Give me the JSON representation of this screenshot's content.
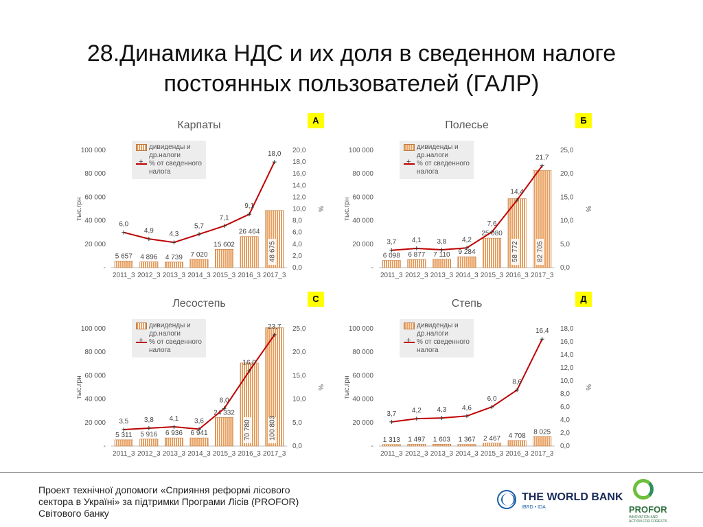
{
  "slide": {
    "title_line1": "28.Динамика НДС и их доля в сведенном налоге",
    "title_line2": "постоянных пользователей (ГАЛР)",
    "footer": "Проект технічної допомоги «Сприяння реформі лісового\nсектора в Україні» за підтримки Програми Лісів (PROFOR)\nСвітового банку",
    "worldbank_label": "THE WORLD BANK",
    "worldbank_sub": "IBRD • IDA",
    "profor_label": "PROFOR",
    "profor_sub": "INNOVATION AND ACTION FOR FORESTS"
  },
  "colors": {
    "bar": "#e8a060",
    "bar_stripe": "#ffffff",
    "line": "#c00000",
    "badge": "#ffff00"
  },
  "chart_data": [
    {
      "type": "bar",
      "badge": "A",
      "title": "Карпаты",
      "categories": [
        "2011_3",
        "2012_3",
        "2013_3",
        "2014_3",
        "2015_3",
        "2016_3",
        "2017_3"
      ],
      "ylabel": "тыс.грн",
      "y2label": "%",
      "ylim": [
        0,
        100000
      ],
      "yticks": [
        "-",
        "20 000",
        "40 000",
        "60 000",
        "80 000",
        "100 000"
      ],
      "y2lim": [
        0,
        20
      ],
      "y2ticks": [
        "0,0",
        "2,0",
        "4,0",
        "6,0",
        "8,0",
        "10,0",
        "12,0",
        "14,0",
        "16,0",
        "18,0",
        "20,0"
      ],
      "legend": [
        "дивиденды и\nдр.налоги",
        "% от сведенного\nналога"
      ],
      "series": [
        {
          "name": "дивиденды и др.налоги",
          "kind": "bar",
          "values": [
            5657,
            4896,
            4739,
            7020,
            15602,
            26464,
            48675
          ],
          "labels": [
            "5 657",
            "4 896",
            "4 739",
            "7 020",
            "15 602",
            "26 464",
            "48 675"
          ]
        },
        {
          "name": "% от сведенного налога",
          "kind": "line",
          "axis": "right",
          "values": [
            6.0,
            4.9,
            4.3,
            5.7,
            7.1,
            9.1,
            18.0
          ],
          "labels": [
            "6,0",
            "4,9",
            "4,3",
            "5,7",
            "7,1",
            "9,1",
            "18,0"
          ]
        }
      ]
    },
    {
      "type": "bar",
      "badge": "Б",
      "title": "Полесье",
      "categories": [
        "2011_3",
        "2012_3",
        "2013_3",
        "2014_3",
        "2015_3",
        "2016_3",
        "2017_3"
      ],
      "ylabel": "тыс.грн",
      "y2label": "%",
      "ylim": [
        0,
        100000
      ],
      "yticks": [
        "-",
        "20 000",
        "40 000",
        "60 000",
        "80 000",
        "100 000"
      ],
      "y2lim": [
        0,
        25
      ],
      "y2ticks": [
        "0,0",
        "5,0",
        "10,0",
        "15,0",
        "20,0",
        "25,0"
      ],
      "legend": [
        "дивиденды и\nдр.налоги",
        "% от сведенного\nналога"
      ],
      "series": [
        {
          "name": "дивиденды и др.налоги",
          "kind": "bar",
          "values": [
            6098,
            6877,
            7110,
            9284,
            25080,
            58772,
            82705
          ],
          "labels": [
            "6 098",
            "6 877",
            "7 110",
            "9 284",
            "25 080",
            "58 772",
            "82 705"
          ]
        },
        {
          "name": "% от сведенного налога",
          "kind": "line",
          "axis": "right",
          "values": [
            3.7,
            4.1,
            3.8,
            4.2,
            7.6,
            14.4,
            21.7
          ],
          "labels": [
            "3,7",
            "4,1",
            "3,8",
            "4,2",
            "7,6",
            "14,4",
            "21,7"
          ]
        }
      ]
    },
    {
      "type": "bar",
      "badge": "С",
      "title": "Лесостепь",
      "categories": [
        "2011_3",
        "2012_3",
        "2013_3",
        "2014_3",
        "2015_3",
        "2016_3",
        "2017_3"
      ],
      "ylabel": "тыс.грн",
      "y2label": "%",
      "ylim": [
        0,
        100000
      ],
      "yticks": [
        "-",
        "20 000",
        "40 000",
        "60 000",
        "80 000",
        "100 000"
      ],
      "y2lim": [
        0,
        25
      ],
      "y2ticks": [
        "0,0",
        "5,0",
        "10,0",
        "15,0",
        "20,0",
        "25,0"
      ],
      "legend": [
        "дивиденды и\nдр.налоги",
        "% от сведенного\nналога"
      ],
      "series": [
        {
          "name": "дивиденды и др.налоги",
          "kind": "bar",
          "values": [
            5311,
            5916,
            6936,
            6941,
            24332,
            70780,
            100803
          ],
          "labels": [
            "5 311",
            "5 916",
            "6 936",
            "6 941",
            "24 332",
            "70 780",
            "100 803"
          ]
        },
        {
          "name": "% от сведенного налога",
          "kind": "line",
          "axis": "right",
          "values": [
            3.5,
            3.8,
            4.1,
            3.6,
            8.0,
            16.0,
            23.7
          ],
          "labels": [
            "3,5",
            "3,8",
            "4,1",
            "3,6",
            "8,0",
            "16,0",
            "23,7"
          ]
        }
      ]
    },
    {
      "type": "bar",
      "badge": "Д",
      "title": "Степь",
      "categories": [
        "2011_3",
        "2012_3",
        "2013_3",
        "2014_3",
        "2015_3",
        "2016_3",
        "2017_3"
      ],
      "ylabel": "тыс.грн",
      "y2label": "%",
      "ylim": [
        0,
        100000
      ],
      "yticks": [
        "-",
        "20 000",
        "40 000",
        "60 000",
        "80 000",
        "100 000"
      ],
      "y2lim": [
        0,
        18
      ],
      "y2ticks": [
        "0,0",
        "2,0",
        "4,0",
        "6,0",
        "8,0",
        "10,0",
        "12,0",
        "14,0",
        "16,0",
        "18,0"
      ],
      "legend": [
        "дивиденды и\nдр.налоги",
        "% от сведенного\nналога"
      ],
      "series": [
        {
          "name": "дивиденды и др.налоги",
          "kind": "bar",
          "values": [
            1313,
            1497,
            1603,
            1367,
            2467,
            4708,
            8025
          ],
          "labels": [
            "1 313",
            "1 497",
            "1 603",
            "1 367",
            "2 467",
            "4 708",
            "8 025"
          ]
        },
        {
          "name": "% от сведенного налога",
          "kind": "line",
          "axis": "right",
          "values": [
            3.7,
            4.2,
            4.3,
            4.6,
            6.0,
            8.6,
            16.4
          ],
          "labels": [
            "3,7",
            "4,2",
            "4,3",
            "4,6",
            "6,0",
            "8,6",
            "16,4"
          ]
        }
      ]
    }
  ]
}
